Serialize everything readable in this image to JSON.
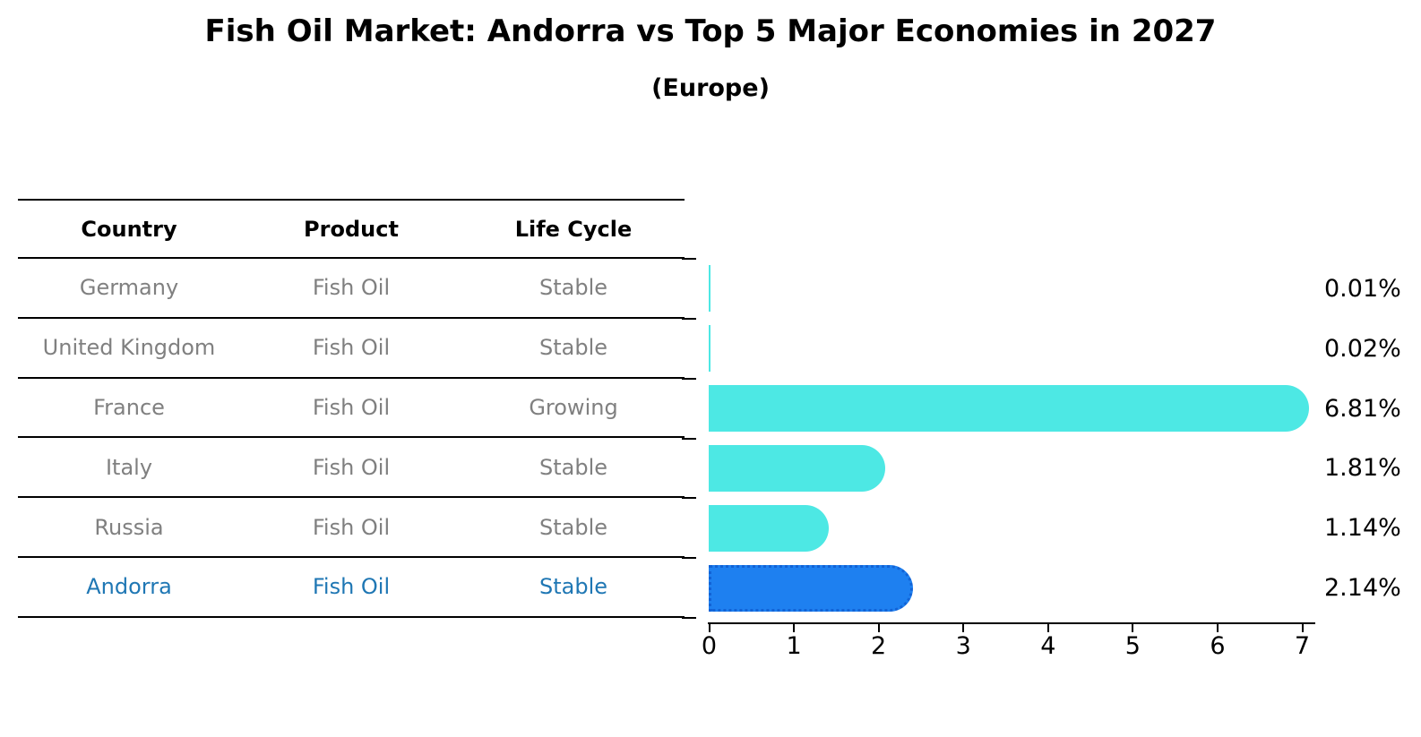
{
  "title": "Fish Oil Market: Andorra vs Top 5 Major Economies in 2027",
  "subtitle": "(Europe)",
  "table": {
    "headers": [
      "Country",
      "Product",
      "Life Cycle"
    ],
    "rows": [
      {
        "country": "Germany",
        "product": "Fish Oil",
        "life_cycle": "Stable",
        "highlight": false
      },
      {
        "country": "United Kingdom",
        "product": "Fish Oil",
        "life_cycle": "Stable",
        "highlight": false
      },
      {
        "country": "France",
        "product": "Fish Oil",
        "life_cycle": "Growing",
        "highlight": false
      },
      {
        "country": "Italy",
        "product": "Fish Oil",
        "life_cycle": "Stable",
        "highlight": false
      },
      {
        "country": "Russia",
        "product": "Fish Oil",
        "life_cycle": "Stable",
        "highlight": false
      },
      {
        "country": "Andorra",
        "product": "Fish Oil",
        "life_cycle": "Stable",
        "highlight": true
      }
    ]
  },
  "chart_data": {
    "type": "bar",
    "orientation": "horizontal",
    "title": "Fish Oil Market: Andorra vs Top 5 Major Economies in 2027",
    "subtitle": "(Europe)",
    "categories": [
      "Germany",
      "United Kingdom",
      "France",
      "Italy",
      "Russia",
      "Andorra"
    ],
    "values": [
      0.01,
      0.02,
      6.81,
      1.81,
      1.14,
      2.14
    ],
    "value_labels": [
      "0.01%",
      "0.02%",
      "6.81%",
      "1.81%",
      "1.14%",
      "2.14%"
    ],
    "xlim": [
      0,
      7
    ],
    "xticks": [
      "0",
      "1",
      "2",
      "3",
      "4",
      "5",
      "6",
      "7"
    ],
    "grid": false,
    "legend": "none",
    "bar_color": "#4DE8E4",
    "highlight_index": 5,
    "highlight_bar_color": "#1E80F0",
    "highlight_border_color": "#1263D6",
    "highlight_text_color": "#1f77b4",
    "muted_text_color": "#808080",
    "axis_color": "#000000"
  }
}
